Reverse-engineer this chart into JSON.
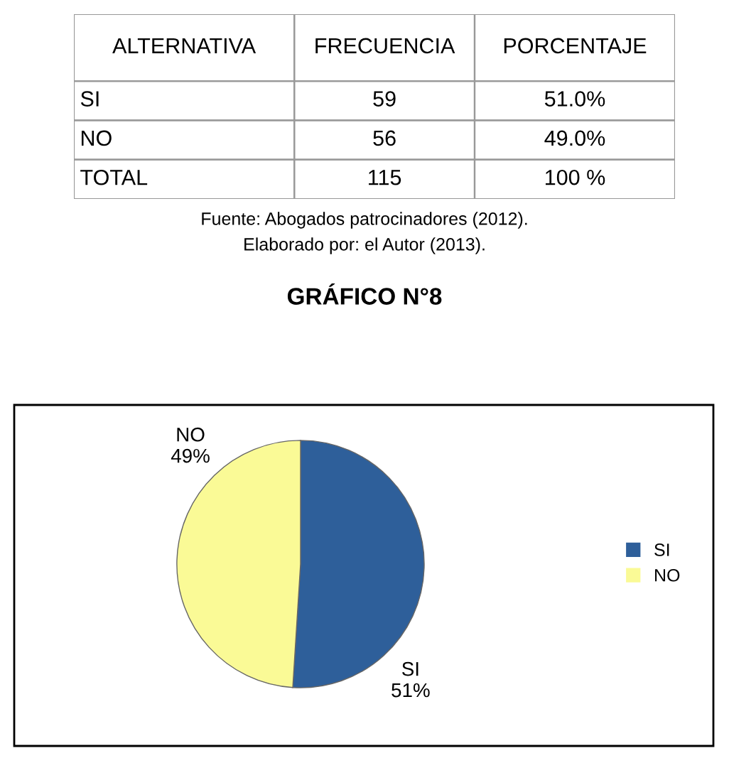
{
  "chart_data": [
    {
      "type": "other",
      "annotations": [
        "ALTERNATIVA",
        "FRECUENCIA",
        "PORCENTAJE",
        "SI",
        "59",
        "51.0%",
        "NO",
        "56",
        "49.0%",
        "TOTAL",
        "115",
        "100 %"
      ]
    },
    {
      "type": "pie",
      "title": "GRÁFICO N°8",
      "categories": [
        "SI",
        "NO"
      ],
      "values": [
        51,
        49
      ],
      "colors": [
        "#2e5f9a",
        "#fafa96"
      ],
      "value_labels": [
        "51%",
        "49%"
      ],
      "legend": "right",
      "annotations": [
        "Fuente: Abogados patrocinadores (2012).",
        "Elaborado por: el Autor (2013)."
      ]
    }
  ]
}
